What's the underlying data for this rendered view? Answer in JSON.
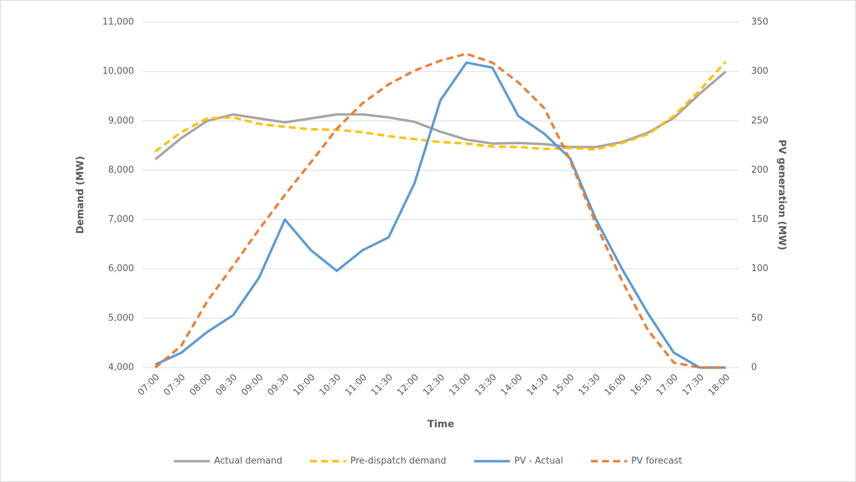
{
  "chart_data": {
    "type": "line",
    "x_label": "Time",
    "y_label": "Demand (MW)",
    "y2_label": "PV generation (MW)",
    "categories": [
      "07:00",
      "07:30",
      "08:00",
      "08:30",
      "09:00",
      "09:30",
      "10:00",
      "10:30",
      "11:00",
      "11:30",
      "12:00",
      "12:30",
      "13:00",
      "13:30",
      "14:00",
      "14:30",
      "15:00",
      "15:30",
      "16:00",
      "16:30",
      "17:00",
      "17:30",
      "18:00"
    ],
    "series": [
      {
        "name": "Actual demand",
        "color": "#a5a5a5",
        "dashed": false,
        "values": [
          8220,
          8650,
          9000,
          9130,
          9050,
          8970,
          9050,
          9130,
          9130,
          9070,
          8980,
          8780,
          8620,
          8540,
          8550,
          8530,
          8470,
          8470,
          8570,
          8760,
          9060,
          9550,
          10000
        ]
      },
      {
        "name": "Pre-dispatch demand",
        "color": "#ffc000",
        "dashed": true,
        "values": [
          8380,
          8770,
          9050,
          9070,
          8940,
          8880,
          8830,
          8820,
          8770,
          8690,
          8630,
          8570,
          8540,
          8480,
          8470,
          8430,
          8450,
          8420,
          8550,
          8730,
          9100,
          9620,
          10200
        ]
      },
      {
        "name": "PV - Actual",
        "color": "#5b9bd5",
        "dashed": false,
        "axis": "y2",
        "values": [
          3,
          15,
          36,
          53,
          91,
          150,
          119,
          98,
          119,
          132,
          187,
          271,
          309,
          304,
          255,
          237,
          212,
          150,
          100,
          55,
          15,
          0,
          0
        ]
      },
      {
        "name": "PV forecast",
        "color": "#ed7d31",
        "dashed": true,
        "axis": "y2",
        "values": [
          0,
          22,
          67,
          103,
          140,
          175,
          208,
          242,
          268,
          287,
          301,
          311,
          318,
          309,
          289,
          263,
          210,
          145,
          88,
          38,
          5,
          0,
          0
        ]
      }
    ],
    "ylim": [
      4000,
      11000
    ],
    "yticks": [
      {
        "value": 4000,
        "label": "4,000"
      },
      {
        "value": 5000,
        "label": "5,000"
      },
      {
        "value": 6000,
        "label": "6,000"
      },
      {
        "value": 7000,
        "label": "7,000"
      },
      {
        "value": 8000,
        "label": "8,000"
      },
      {
        "value": 9000,
        "label": "9,000"
      },
      {
        "value": 10000,
        "label": "10,000"
      },
      {
        "value": 11000,
        "label": "11,000"
      }
    ],
    "y2lim": [
      0,
      350
    ],
    "y2ticks": [
      0,
      50,
      100,
      150,
      200,
      250,
      300,
      350
    ],
    "grid": true,
    "legend": "bottom"
  }
}
